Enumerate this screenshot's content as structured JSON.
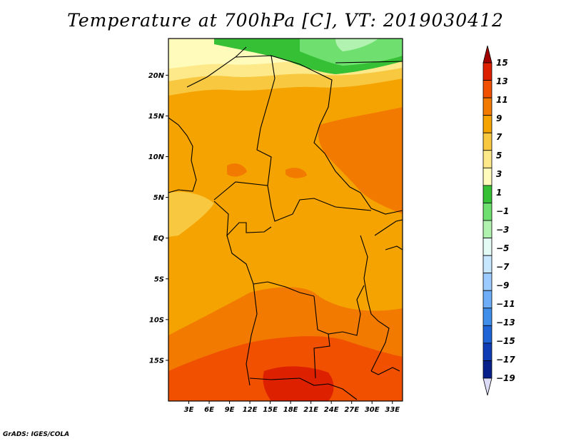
{
  "title": "Temperature at 700hPa [C], VT: 2019030412",
  "credit": "GrADS: IGES/COLA",
  "map": {
    "lon_range": [
      0,
      34.5
    ],
    "lat_range": [
      -20,
      24.5
    ],
    "lon_ticks": [
      {
        "value": 3,
        "label": "3E"
      },
      {
        "value": 6,
        "label": "6E"
      },
      {
        "value": 9,
        "label": "9E"
      },
      {
        "value": 12,
        "label": "12E"
      },
      {
        "value": 15,
        "label": "15E"
      },
      {
        "value": 18,
        "label": "18E"
      },
      {
        "value": 21,
        "label": "21E"
      },
      {
        "value": 24,
        "label": "24E"
      },
      {
        "value": 27,
        "label": "27E"
      },
      {
        "value": 30,
        "label": "30E"
      },
      {
        "value": 33,
        "label": "33E"
      }
    ],
    "lat_ticks": [
      {
        "value": 20,
        "label": "20N"
      },
      {
        "value": 15,
        "label": "15N"
      },
      {
        "value": 10,
        "label": "10N"
      },
      {
        "value": 5,
        "label": "5N"
      },
      {
        "value": 0,
        "label": "EQ"
      },
      {
        "value": -5,
        "label": "5S"
      },
      {
        "value": -10,
        "label": "10S"
      },
      {
        "value": -15,
        "label": "15S"
      }
    ]
  },
  "colorbar": {
    "levels": [
      "15",
      "13",
      "11",
      "9",
      "7",
      "5",
      "3",
      "1",
      "−1",
      "−3",
      "−5",
      "−7",
      "−9",
      "−11",
      "−13",
      "−15",
      "−17",
      "−19"
    ],
    "colors": [
      "#a00000",
      "#dc2000",
      "#f05000",
      "#f27a00",
      "#f4a300",
      "#f8c840",
      "#fde98a",
      "#fffbbb",
      "#36c036",
      "#6fe06f",
      "#b2f2b0",
      "#e4faf5",
      "#c6e7ff",
      "#9ccbff",
      "#6eaef8",
      "#3f8eea",
      "#1f64d6",
      "#0e3cb4",
      "#08218a",
      "#dcdcf6"
    ],
    "upper_arrow_color": "#a00000",
    "lower_arrow_color": "#dcdcf6"
  },
  "temperature_regions": [
    {
      "name": "background-warm",
      "color": "#f4a300"
    },
    {
      "name": "northern-cool-band",
      "color": "#fde98a"
    },
    {
      "name": "northern-green",
      "color": "#36c036"
    },
    {
      "name": "northern-light-green",
      "color": "#6fe06f"
    },
    {
      "name": "southern-hot",
      "color": "#f27a00"
    },
    {
      "name": "southern-hottest",
      "color": "#f05000"
    },
    {
      "name": "east-hot",
      "color": "#f27a00"
    }
  ]
}
